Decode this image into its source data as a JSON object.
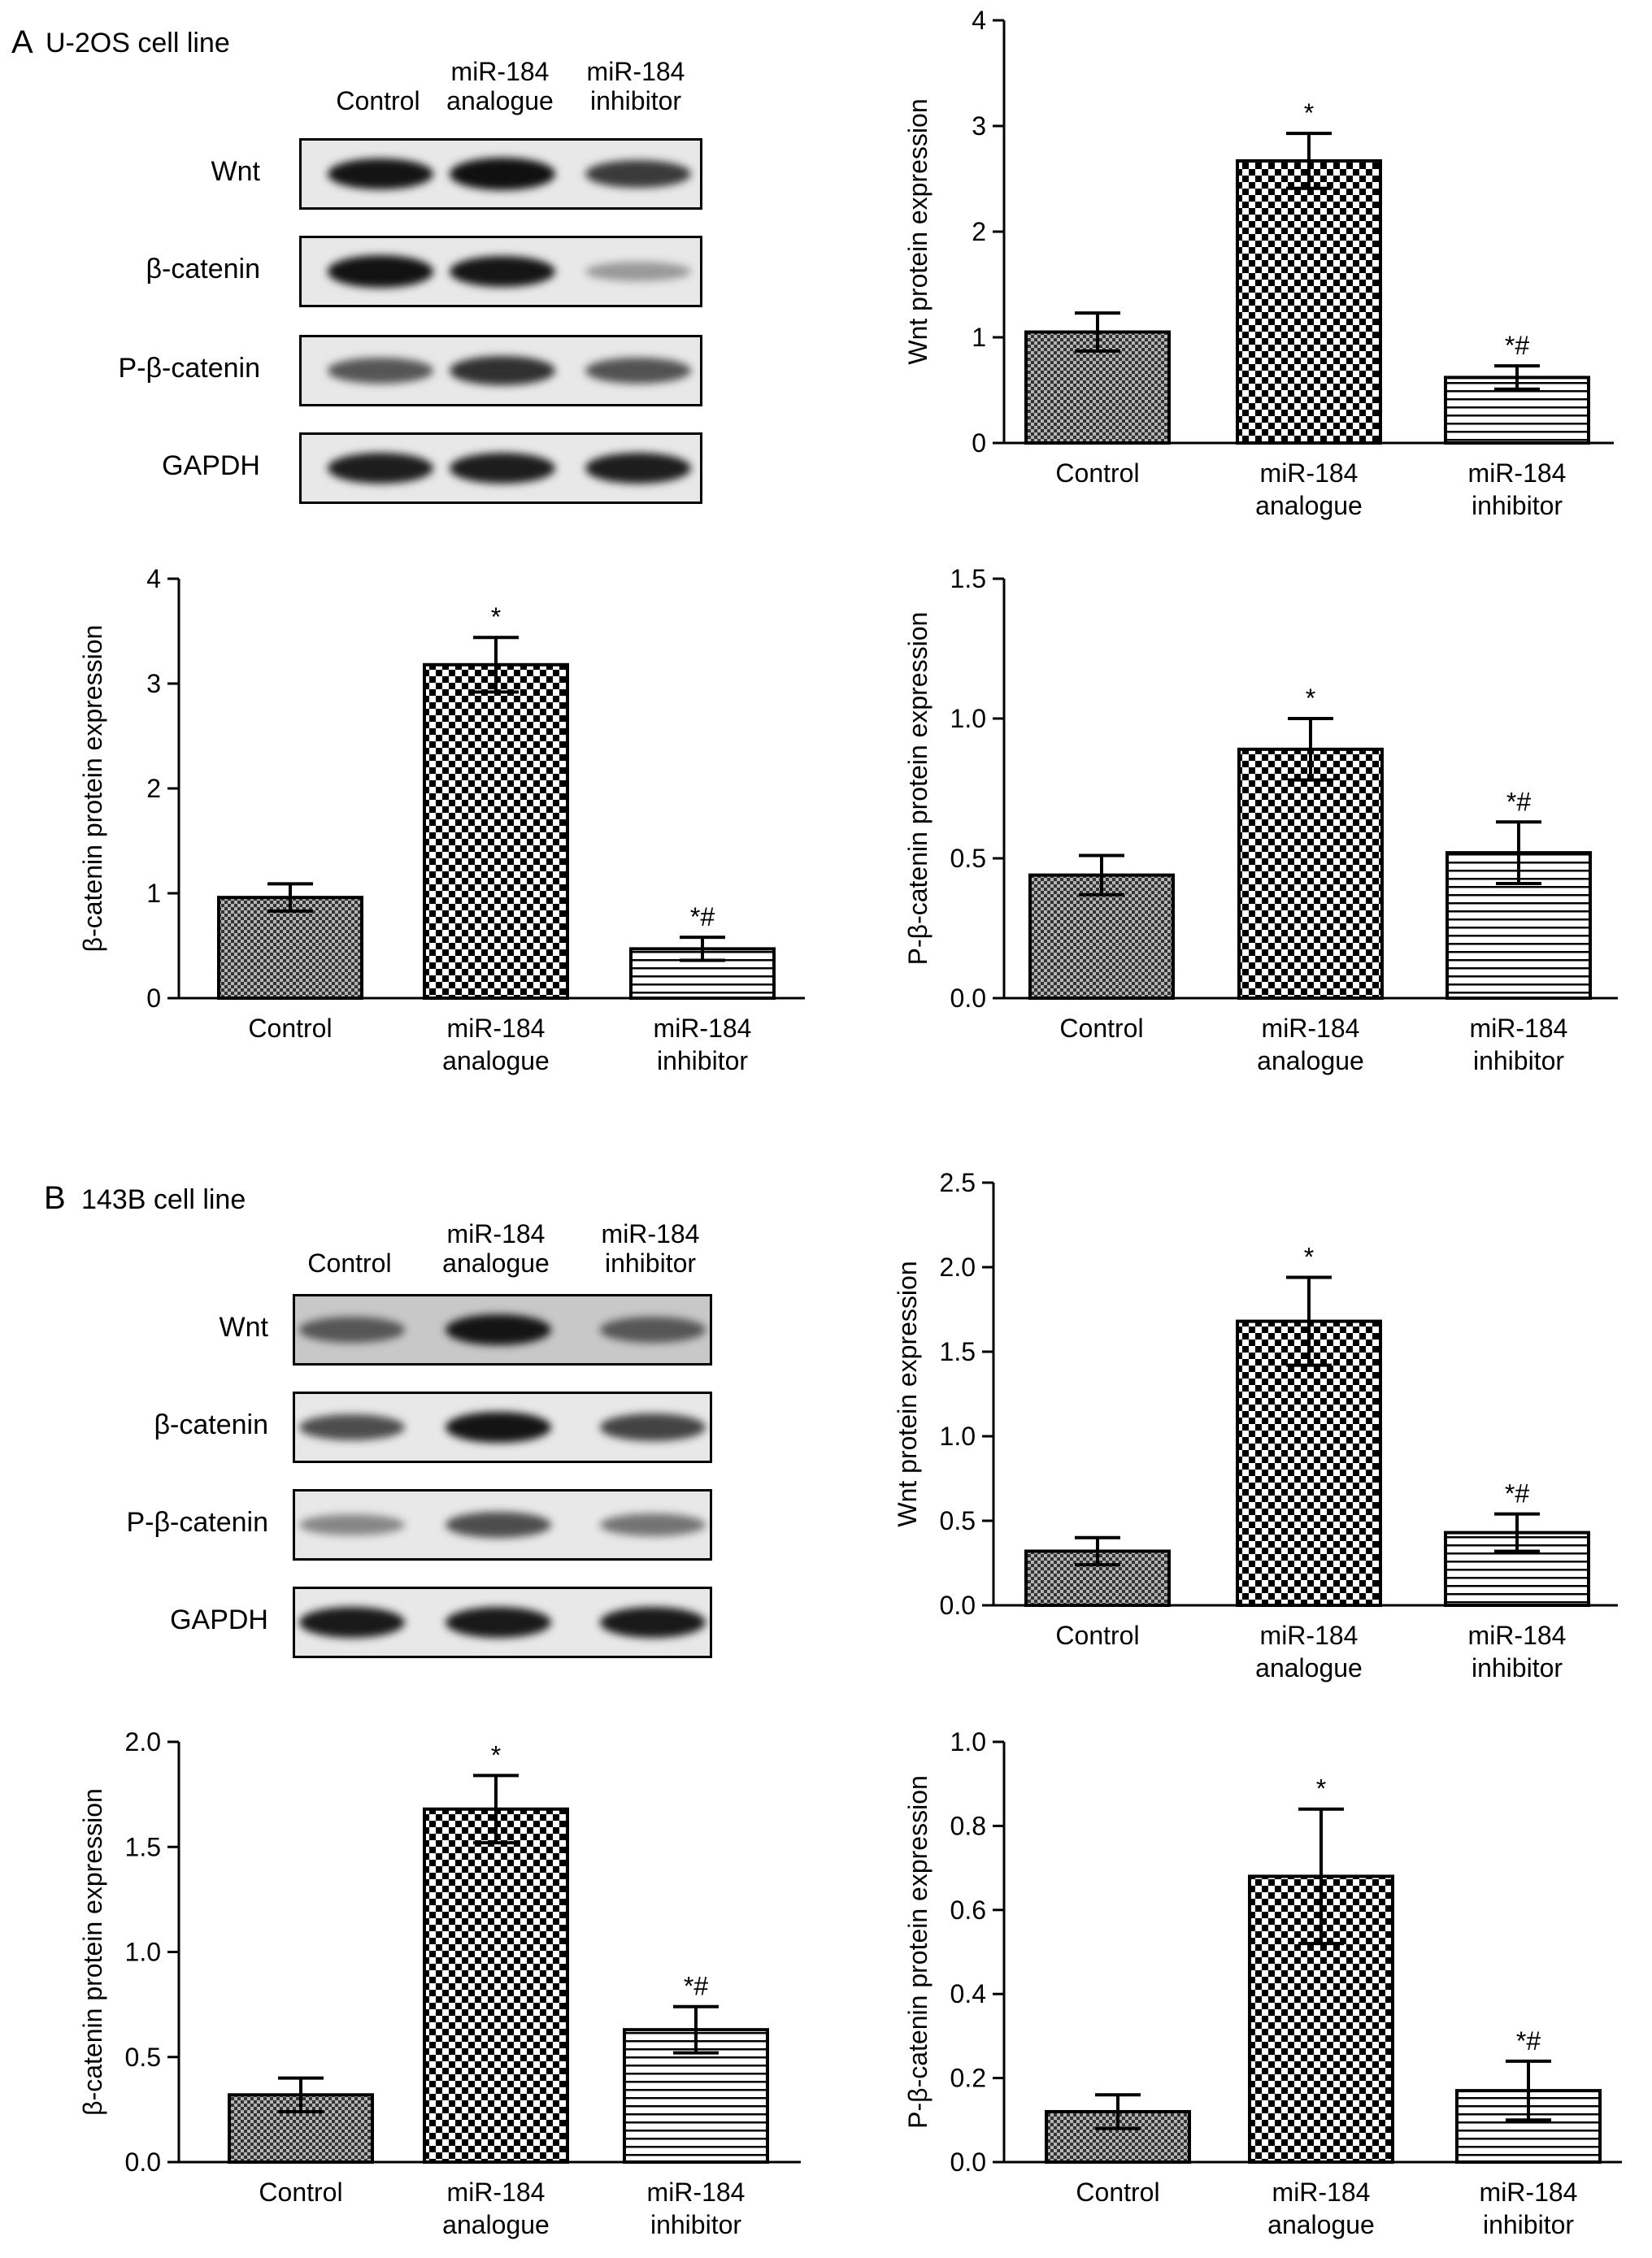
{
  "panels": [
    {
      "letter": "A",
      "subtitle": "U-2OS cell line",
      "blot": {
        "lanes": [
          [
            "Control"
          ],
          [
            "miR-184",
            "analogue"
          ],
          [
            "miR-184",
            "inhibitor"
          ]
        ],
        "rows": [
          {
            "label": "Wnt",
            "intensity": [
              0.95,
              0.97,
              0.75
            ]
          },
          {
            "label": "β-catenin",
            "intensity": [
              0.96,
              0.94,
              0.25
            ]
          },
          {
            "label": "P-β-catenin",
            "intensity": [
              0.6,
              0.8,
              0.62
            ]
          },
          {
            "label": "GAPDH",
            "intensity": [
              0.9,
              0.9,
              0.9
            ]
          }
        ]
      }
    },
    {
      "letter": "B",
      "subtitle": "143B cell line",
      "blot": {
        "lanes": [
          [
            "Control"
          ],
          [
            "miR-184",
            "analogue"
          ],
          [
            "miR-184",
            "inhibitor"
          ]
        ],
        "rows": [
          {
            "label": "Wnt",
            "intensity": [
              0.6,
              0.95,
              0.6
            ]
          },
          {
            "label": "β-catenin",
            "intensity": [
              0.65,
              0.95,
              0.7
            ]
          },
          {
            "label": "P-β-catenin",
            "intensity": [
              0.35,
              0.65,
              0.45
            ]
          },
          {
            "label": "GAPDH",
            "intensity": [
              0.92,
              0.92,
              0.92
            ]
          }
        ]
      }
    }
  ],
  "chart_data": [
    {
      "id": "A-wnt",
      "type": "bar",
      "categories": [
        [
          "Control"
        ],
        [
          "miR-184",
          "analogue"
        ],
        [
          "miR-184",
          "inhibitor"
        ]
      ],
      "values": [
        1.05,
        2.67,
        0.62
      ],
      "errors": [
        0.18,
        0.26,
        0.11
      ],
      "annotations": [
        "",
        "*",
        "*#"
      ],
      "patterns": [
        "dots",
        "checker",
        "hlines"
      ],
      "ylabel": "Wnt protein expression",
      "ylim": [
        0,
        4
      ],
      "yticks": [
        "0",
        "1",
        "2",
        "3",
        "4"
      ]
    },
    {
      "id": "A-bcat",
      "type": "bar",
      "categories": [
        [
          "Control"
        ],
        [
          "miR-184",
          "analogue"
        ],
        [
          "miR-184",
          "inhibitor"
        ]
      ],
      "values": [
        0.96,
        3.18,
        0.47
      ],
      "errors": [
        0.13,
        0.26,
        0.11
      ],
      "annotations": [
        "",
        "*",
        "*#"
      ],
      "patterns": [
        "dots",
        "checker",
        "hlines"
      ],
      "ylabel": "β-catenin protein expression",
      "ylim": [
        0,
        4
      ],
      "yticks": [
        "0",
        "1",
        "2",
        "3",
        "4"
      ]
    },
    {
      "id": "A-pbcat",
      "type": "bar",
      "categories": [
        [
          "Control"
        ],
        [
          "miR-184",
          "analogue"
        ],
        [
          "miR-184",
          "inhibitor"
        ]
      ],
      "values": [
        0.44,
        0.89,
        0.52
      ],
      "errors": [
        0.07,
        0.11,
        0.11
      ],
      "annotations": [
        "",
        "*",
        "*#"
      ],
      "patterns": [
        "dots",
        "checker",
        "hlines"
      ],
      "ylabel": "P-β-catenin protein expression",
      "ylim": [
        0,
        1.5
      ],
      "yticks": [
        "0.0",
        "0.5",
        "1.0",
        "1.5"
      ]
    },
    {
      "id": "B-wnt",
      "type": "bar",
      "categories": [
        [
          "Control"
        ],
        [
          "miR-184",
          "analogue"
        ],
        [
          "miR-184",
          "inhibitor"
        ]
      ],
      "values": [
        0.32,
        1.68,
        0.43
      ],
      "errors": [
        0.08,
        0.26,
        0.11
      ],
      "annotations": [
        "",
        "*",
        "*#"
      ],
      "patterns": [
        "dots",
        "checker",
        "hlines"
      ],
      "ylabel": "Wnt protein expression",
      "ylim": [
        0,
        2.5
      ],
      "yticks": [
        "0.0",
        "0.5",
        "1.0",
        "1.5",
        "2.0",
        "2.5"
      ]
    },
    {
      "id": "B-bcat",
      "type": "bar",
      "categories": [
        [
          "Control"
        ],
        [
          "miR-184",
          "analogue"
        ],
        [
          "miR-184",
          "inhibitor"
        ]
      ],
      "values": [
        0.32,
        1.68,
        0.63
      ],
      "errors": [
        0.08,
        0.16,
        0.11
      ],
      "annotations": [
        "",
        "*",
        "*#"
      ],
      "patterns": [
        "dots",
        "checker",
        "hlines"
      ],
      "ylabel": "β-catenin protein expression",
      "ylim": [
        0,
        2.0
      ],
      "yticks": [
        "0.0",
        "0.5",
        "1.0",
        "1.5",
        "2.0"
      ]
    },
    {
      "id": "B-pbcat",
      "type": "bar",
      "categories": [
        [
          "Control"
        ],
        [
          "miR-184",
          "analogue"
        ],
        [
          "miR-184",
          "inhibitor"
        ]
      ],
      "values": [
        0.12,
        0.68,
        0.17
      ],
      "errors": [
        0.04,
        0.16,
        0.07
      ],
      "annotations": [
        "",
        "*",
        "*#"
      ],
      "patterns": [
        "dots",
        "checker",
        "hlines"
      ],
      "ylabel": "P-β-catenin protein expression",
      "ylim": [
        0,
        1.0
      ],
      "yticks": [
        "0.0",
        "0.2",
        "0.4",
        "0.6",
        "0.8",
        "1.0"
      ]
    }
  ]
}
